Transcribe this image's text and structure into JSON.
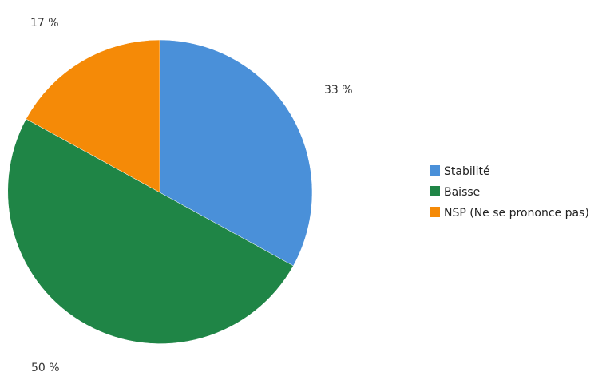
{
  "chart_data": {
    "type": "pie",
    "slices": [
      {
        "label": "Stabilité",
        "value": 33,
        "display": "33 %",
        "color": "#4a90d9"
      },
      {
        "label": "Baisse",
        "value": 50,
        "display": "50 %",
        "color": "#1f8546"
      },
      {
        "label": "NSP (Ne se prononce pas)",
        "value": 17,
        "display": "17 %",
        "color": "#f58a07"
      }
    ],
    "start_angle": "12 o'clock",
    "direction": "clockwise",
    "legend_placement": "right"
  }
}
